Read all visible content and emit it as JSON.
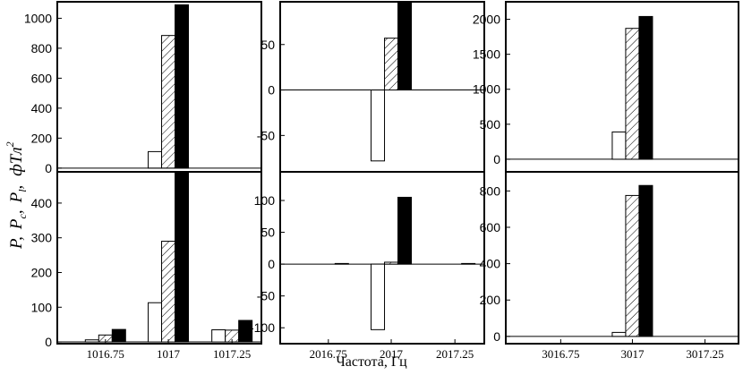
{
  "figure": {
    "ylabel_parts": [
      "P,",
      "P",
      "c",
      ",",
      "P",
      "l",
      ",",
      "фTл",
      "2"
    ],
    "xlabel": "Частота, Гц"
  },
  "chart_data": [
    {
      "id": "a1",
      "type": "bar",
      "row": 0,
      "col": 0,
      "categories": [
        "1016.75",
        "1017",
        "1017.25"
      ],
      "ylim": [
        -25,
        1110
      ],
      "yticks": [
        0,
        200,
        400,
        600,
        800,
        1000
      ],
      "show_xticks": false,
      "series": [
        {
          "style": "white",
          "values": [
            0,
            110,
            0
          ]
        },
        {
          "style": "hatched",
          "values": [
            0,
            885,
            0
          ]
        },
        {
          "style": "black",
          "values": [
            0,
            1090,
            0
          ]
        }
      ]
    },
    {
      "id": "a2",
      "type": "bar",
      "row": 0,
      "col": 1,
      "categories": [
        "2016.75",
        "2017",
        "2017.25"
      ],
      "ylim": [
        -90,
        97
      ],
      "yticks": [
        -50,
        0,
        50
      ],
      "show_xticks": false,
      "series": [
        {
          "style": "white",
          "values": [
            0,
            -78,
            0
          ]
        },
        {
          "style": "hatched",
          "values": [
            0,
            57,
            0
          ]
        },
        {
          "style": "black",
          "values": [
            0,
            97,
            0
          ]
        }
      ]
    },
    {
      "id": "a3",
      "type": "bar",
      "row": 0,
      "col": 2,
      "categories": [
        "3016.75",
        "3017",
        "3017.25"
      ],
      "ylim": [
        -180,
        2250
      ],
      "yticks": [
        0,
        500,
        1000,
        1500,
        2000
      ],
      "show_xticks": false,
      "series": [
        {
          "style": "white",
          "values": [
            0,
            390,
            0
          ]
        },
        {
          "style": "hatched",
          "values": [
            0,
            1870,
            0
          ]
        },
        {
          "style": "black",
          "values": [
            0,
            2040,
            0
          ]
        }
      ]
    },
    {
      "id": "b1",
      "type": "bar",
      "row": 1,
      "col": 0,
      "categories": [
        "1016.75",
        "1017",
        "1017.25"
      ],
      "ylim": [
        -5,
        490
      ],
      "yticks": [
        0,
        100,
        200,
        300,
        400
      ],
      "show_xticks": true,
      "series": [
        {
          "style": "white",
          "values": [
            6,
            113,
            35
          ]
        },
        {
          "style": "hatched",
          "values": [
            20,
            290,
            34
          ]
        },
        {
          "style": "black",
          "values": [
            36,
            490,
            62
          ]
        }
      ]
    },
    {
      "id": "b2",
      "type": "bar",
      "row": 1,
      "col": 1,
      "categories": [
        "2016.75",
        "2017",
        "2017.25"
      ],
      "ylim": [
        -125,
        145
      ],
      "yticks": [
        -100,
        -50,
        0,
        50,
        100
      ],
      "show_xticks": true,
      "series": [
        {
          "style": "white",
          "values": [
            0,
            -103,
            0
          ]
        },
        {
          "style": "hatched",
          "values": [
            0,
            3,
            0
          ]
        },
        {
          "style": "black",
          "values": [
            1,
            105,
            1
          ]
        }
      ]
    },
    {
      "id": "b3",
      "type": "bar",
      "row": 1,
      "col": 2,
      "categories": [
        "3016.75",
        "3017",
        "3017.25"
      ],
      "ylim": [
        -40,
        905
      ],
      "yticks": [
        0,
        200,
        400,
        600,
        800
      ],
      "show_xticks": true,
      "series": [
        {
          "style": "white",
          "values": [
            0,
            22,
            0
          ]
        },
        {
          "style": "hatched",
          "values": [
            0,
            775,
            0
          ]
        },
        {
          "style": "black",
          "values": [
            0,
            830,
            0
          ]
        }
      ]
    }
  ]
}
